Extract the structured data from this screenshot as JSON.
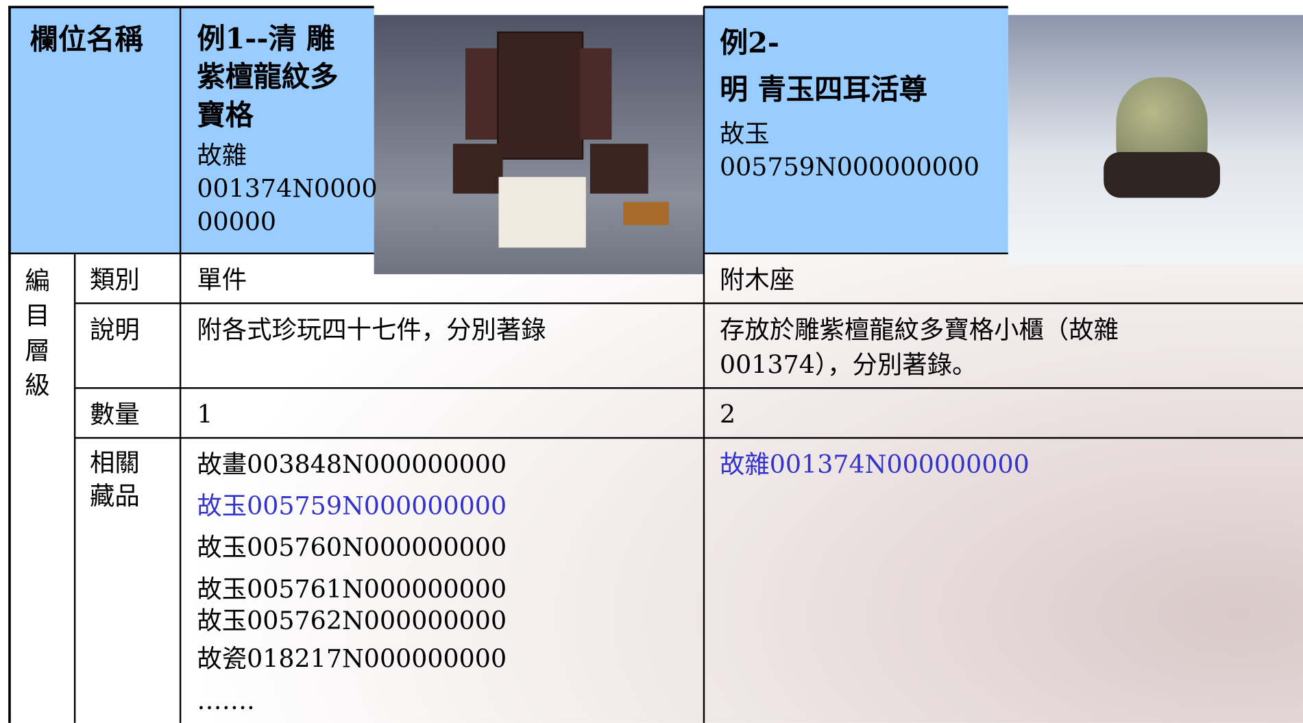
{
  "header": {
    "field_name": "欄位名稱",
    "example_1": {
      "title_lines": [
        "例1--清 雕",
        "紫檀龍紋多",
        "寶格"
      ],
      "id_lines": [
        "故雜",
        "001374N0000",
        "00000"
      ]
    },
    "example_2": {
      "title_lines": [
        "例2-",
        "明 青玉四耳活尊"
      ],
      "id_lines": [
        "故玉",
        "005759N000000000"
      ]
    }
  },
  "group_label": "編目層級",
  "rows": [
    {
      "label": "類別",
      "example_1": [
        "單件"
      ],
      "example_2": [
        "附木座"
      ]
    },
    {
      "label": "說明",
      "example_1": [
        "附各式珍玩四十七件，分別著錄"
      ],
      "example_2": [
        "存放於雕紫檀龍紋多寶格小櫃（故雜",
        "001374），分別著錄。"
      ]
    },
    {
      "label": "數量",
      "example_1": [
        "1"
      ],
      "example_2": [
        "2"
      ]
    }
  ],
  "related": {
    "label_lines": [
      "相關",
      "藏品"
    ],
    "example_1": [
      {
        "text": "故畫003848N000000000",
        "linked": false
      },
      {
        "text": "故玉005759N000000000",
        "linked": true
      },
      {
        "text": "故玉005760N000000000",
        "linked": false
      },
      {
        "text": "故玉005761N000000000",
        "linked": false
      },
      {
        "text": "故玉005762N000000000",
        "linked": false
      },
      {
        "text": "故瓷018217N000000000",
        "linked": false
      },
      {
        "text": "…….",
        "linked": false
      }
    ],
    "example_2": [
      {
        "text": "故雜001374N000000000",
        "linked": true
      }
    ]
  }
}
